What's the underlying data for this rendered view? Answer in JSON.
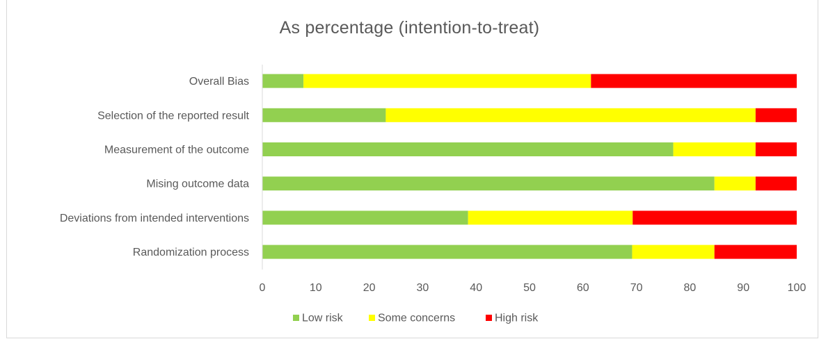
{
  "chart_data": {
    "type": "bar",
    "orientation": "horizontal",
    "stacked": true,
    "title": "As percentage (intention-to-treat)",
    "categories": [
      "Overall Bias",
      "Selection of the reported result",
      "Measurement of the outcome",
      "Mising outcome data",
      "Deviations from intended interventions",
      "Randomization process"
    ],
    "series": [
      {
        "name": "Low risk",
        "color": "#92d050",
        "values": [
          7.7,
          23.1,
          76.9,
          84.6,
          38.5,
          69.2
        ]
      },
      {
        "name": "Some concerns",
        "color": "#ffff00",
        "values": [
          53.8,
          69.2,
          15.4,
          7.7,
          30.8,
          15.4
        ]
      },
      {
        "name": "High risk",
        "color": "#ff0000",
        "values": [
          38.5,
          7.7,
          7.7,
          7.7,
          30.7,
          15.4
        ]
      }
    ],
    "xlim": [
      0,
      100
    ],
    "xticks": [
      0,
      10,
      20,
      30,
      40,
      50,
      60,
      70,
      80,
      90,
      100
    ],
    "xlabel": "",
    "ylabel": "",
    "grid": false,
    "legend_position": "bottom"
  }
}
